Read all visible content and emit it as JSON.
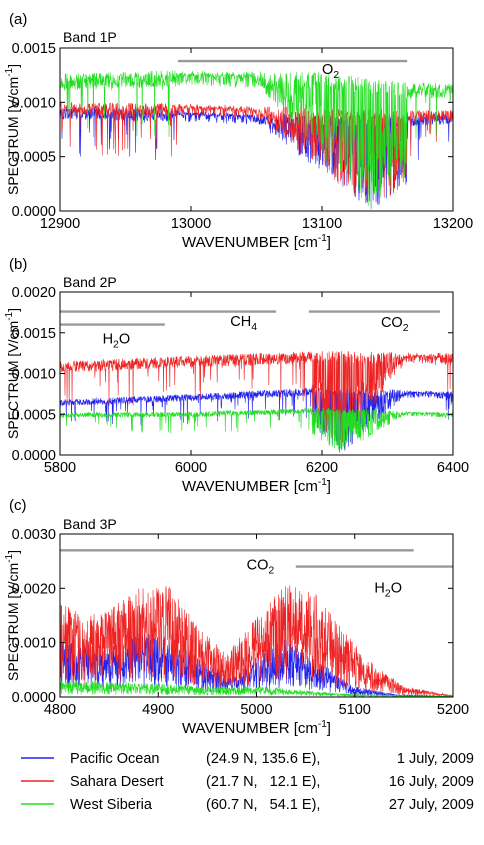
{
  "chart_data": [
    {
      "type": "line",
      "panel_label": "(a)",
      "title": "Band 1P",
      "xlabel": "WAVENUMBER [cm-1]",
      "ylabel": "SPECTRUM [V/cm-1]",
      "xlim": [
        12900,
        13200
      ],
      "ylim": [
        0,
        0.0015
      ],
      "xticks": [
        12900,
        13000,
        13100,
        13200
      ],
      "xtick_labels": [
        "12900",
        "13000",
        "13100",
        "13200"
      ],
      "yticks": [
        0,
        0.0005,
        0.001,
        0.0015
      ],
      "ytick_labels": [
        "0.0000",
        "0.0005",
        "0.0010",
        "0.0015"
      ],
      "annotations": [
        {
          "label": "O",
          "sub": "2",
          "x": 13100,
          "y": 0.00126,
          "range": [
            12990,
            13165
          ],
          "bar_y": 0.00138
        }
      ],
      "series": [
        {
          "color": "#2222ee",
          "line_count": 1200,
          "x_range": [
            12900,
            13200
          ],
          "baseline": [
            [
              12900,
              0.00096
            ],
            [
              12990,
              0.00093
            ],
            [
              13100,
              0.00088
            ],
            [
              13165,
              0.00088
            ],
            [
              13200,
              0.0009
            ]
          ],
          "absorption_band": [
            12990,
            13165
          ],
          "absorption_center": 13138
        },
        {
          "color": "#ee2222",
          "line_count": 1200,
          "x_range": [
            12900,
            13200
          ],
          "baseline": [
            [
              12900,
              0.001
            ],
            [
              12990,
              0.00099
            ],
            [
              13100,
              0.00095
            ],
            [
              13165,
              0.00093
            ],
            [
              13200,
              0.00093
            ]
          ],
          "absorption_band": [
            12990,
            13165
          ],
          "absorption_center": 13138
        },
        {
          "color": "#22dd22",
          "line_count": 1200,
          "x_range": [
            12900,
            13200
          ],
          "baseline": [
            [
              12900,
              0.00126
            ],
            [
              12990,
              0.0013
            ],
            [
              13100,
              0.00128
            ],
            [
              13165,
              0.00118
            ],
            [
              13200,
              0.00118
            ]
          ],
          "absorption_band": [
            12990,
            13165
          ],
          "absorption_center": 13138
        }
      ]
    },
    {
      "type": "line",
      "panel_label": "(b)",
      "title": "Band 2P",
      "xlabel": "WAVENUMBER [cm-1]",
      "ylabel": "SPECTRUM [V/cm-1]",
      "xlim": [
        5800,
        6400
      ],
      "ylim": [
        0,
        0.002
      ],
      "xticks": [
        5800,
        6000,
        6200,
        6400
      ],
      "xtick_labels": [
        "5800",
        "6000",
        "6200",
        "6400"
      ],
      "yticks": [
        0,
        0.0005,
        0.001,
        0.0015,
        0.002
      ],
      "ytick_labels": [
        "0.0000",
        "0.0005",
        "0.0010",
        "0.0015",
        "0.0020"
      ],
      "annotations": [
        {
          "label": "H",
          "sub": "2",
          "suffix": "O",
          "x": 5865,
          "y": 0.00137,
          "range": [
            5800,
            5960
          ],
          "bar_y": 0.0016
        },
        {
          "label": "CH",
          "sub": "4",
          "x": 6060,
          "y": 0.00158,
          "range": [
            5800,
            6130
          ],
          "bar_y": 0.00176
        },
        {
          "label": "CO",
          "sub": "2",
          "x": 6290,
          "y": 0.00157,
          "range": [
            6180,
            6380
          ],
          "bar_y": 0.00176
        }
      ],
      "series": [
        {
          "color": "#2222ee",
          "line_count": 1500,
          "x_range": [
            5800,
            6400
          ],
          "baseline": [
            [
              5800,
              0.00068
            ],
            [
              6000,
              0.00075
            ],
            [
              6200,
              0.00083
            ],
            [
              6400,
              0.00078
            ]
          ],
          "absorption_band": [
            6185,
            6380
          ],
          "absorption_center": 6230
        },
        {
          "color": "#ee2222",
          "line_count": 1500,
          "x_range": [
            5800,
            6400
          ],
          "baseline": [
            [
              5800,
              0.00115
            ],
            [
              6000,
              0.00122
            ],
            [
              6200,
              0.00128
            ],
            [
              6400,
              0.00125
            ]
          ],
          "absorption_band": [
            6185,
            6380
          ],
          "absorption_center": 6230
        },
        {
          "color": "#22dd22",
          "line_count": 1500,
          "x_range": [
            5800,
            6400
          ],
          "baseline": [
            [
              5800,
              0.00052
            ],
            [
              6000,
              0.00053
            ],
            [
              6200,
              0.00058
            ],
            [
              6400,
              0.00052
            ]
          ],
          "absorption_band": [
            6185,
            6380
          ],
          "absorption_center": 6230
        }
      ]
    },
    {
      "type": "line",
      "panel_label": "(c)",
      "title": "Band 3P",
      "xlabel": "WAVENUMBER [cm-1]",
      "ylabel": "SPECTRUM [V/cm-1]",
      "xlim": [
        4800,
        5200
      ],
      "ylim": [
        0,
        0.003
      ],
      "xticks": [
        4800,
        4900,
        5000,
        5100,
        5200
      ],
      "xtick_labels": [
        "4800",
        "4900",
        "5000",
        "5100",
        "5200"
      ],
      "yticks": [
        0,
        0.001,
        0.002,
        0.003
      ],
      "ytick_labels": [
        "0.0000",
        "0.0010",
        "0.0020",
        "0.0030"
      ],
      "annotations": [
        {
          "label": "CO",
          "sub": "2",
          "x": 4990,
          "y": 0.00235,
          "range": [
            4800,
            5160
          ],
          "bar_y": 0.0027
        },
        {
          "label": "H",
          "sub": "2",
          "suffix": "O",
          "x": 5120,
          "y": 0.00192,
          "range": [
            5040,
            5200
          ],
          "bar_y": 0.0024
        }
      ],
      "series": [
        {
          "color": "#2222ee",
          "line_count": 1500,
          "x_range": [
            4800,
            5200
          ],
          "envelope": [
            [
              4800,
              0.0011
            ],
            [
              4850,
              0.0009
            ],
            [
              4880,
              0.0012
            ],
            [
              4910,
              0.0011
            ],
            [
              4950,
              0.0006
            ],
            [
              4980,
              0.0004
            ],
            [
              5000,
              0.0008
            ],
            [
              5030,
              0.0011
            ],
            [
              5060,
              0.0007
            ],
            [
              5100,
              0.0002
            ],
            [
              5140,
              5e-05
            ],
            [
              5200,
              1e-05
            ]
          ]
        },
        {
          "color": "#ee2222",
          "line_count": 1500,
          "x_range": [
            4800,
            5200
          ],
          "envelope": [
            [
              4800,
              0.0017
            ],
            [
              4840,
              0.0015
            ],
            [
              4880,
              0.002
            ],
            [
              4910,
              0.0021
            ],
            [
              4940,
              0.0013
            ],
            [
              4970,
              0.0008
            ],
            [
              5000,
              0.0015
            ],
            [
              5030,
              0.0021
            ],
            [
              5060,
              0.0019
            ],
            [
              5090,
              0.0012
            ],
            [
              5120,
              0.0006
            ],
            [
              5150,
              0.0002
            ],
            [
              5200,
              3e-05
            ]
          ]
        },
        {
          "color": "#22dd22",
          "line_count": 1500,
          "x_range": [
            4800,
            5200
          ],
          "envelope": [
            [
              4800,
              0.0003
            ],
            [
              4900,
              0.00025
            ],
            [
              4950,
              0.0002
            ],
            [
              5000,
              0.0002
            ],
            [
              5050,
              0.00012
            ],
            [
              5100,
              5e-05
            ],
            [
              5200,
              1e-05
            ]
          ]
        }
      ]
    }
  ],
  "legend": [
    {
      "name": "Pacific Ocean",
      "coords": "(24.9 N, 135.6 E),",
      "date": "1 July, 2009",
      "color": "#2222ee"
    },
    {
      "name": "Sahara Desert",
      "coords": "(21.7 N,   12.1 E),",
      "date": "16 July, 2009",
      "color": "#ee2222"
    },
    {
      "name": "West Siberia",
      "coords": "(60.7 N,   54.1 E),",
      "date": "27 July, 2009",
      "color": "#22dd22"
    }
  ]
}
